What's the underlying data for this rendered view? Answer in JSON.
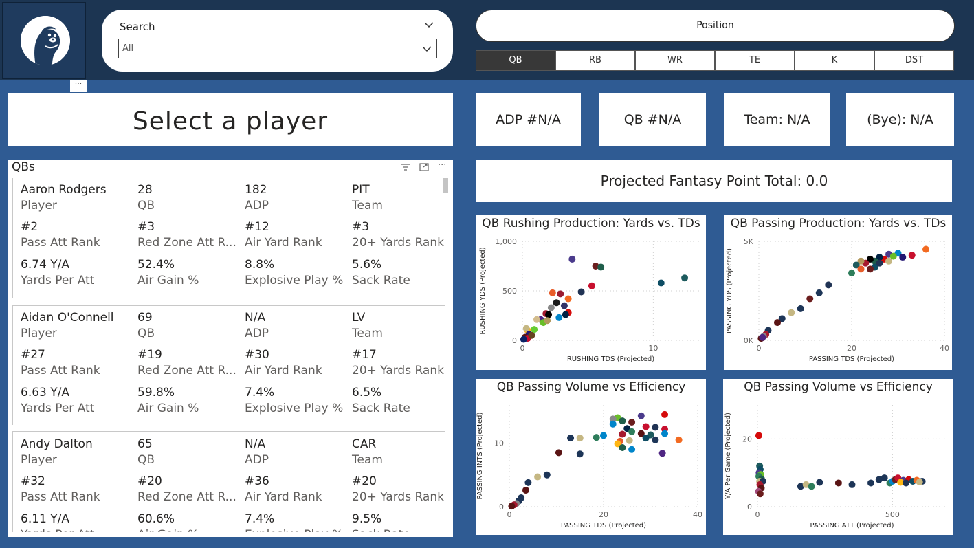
{
  "search": {
    "title": "Search",
    "value": "All"
  },
  "position": {
    "title": "Position",
    "options": [
      "QB",
      "RB",
      "WR",
      "TE",
      "K",
      "DST"
    ],
    "selected": "QB"
  },
  "more_label": "···",
  "header": {
    "player_title": "Select a player"
  },
  "stats": {
    "adp": "ADP #N/A",
    "pos_rank": "QB #N/A",
    "team": "Team: N/A",
    "bye": "(Bye): N/A"
  },
  "projected_total": "Projected Fantasy Point Total: 0.0",
  "qbs_panel": {
    "title": "QBs",
    "labels": {
      "player": "Player",
      "age": "QB",
      "adp": "ADP",
      "team": "Team",
      "pass_att_rank": "Pass Att Rank",
      "red_zone": "Red Zone Att R...",
      "air_yard_rank": "Air Yard Rank",
      "yards20": "20+ Yards Rank",
      "ypa": "Yards Per Att",
      "air_gain": "Air Gain %",
      "explosive": "Explosive Play %",
      "sack_rate": "Sack Rate"
    },
    "players": [
      {
        "name": "Aaron Rodgers",
        "age": "28",
        "adp": "182",
        "team": "PIT",
        "pass_att_rank": "#2",
        "red_zone": "#3",
        "air_yard_rank": "#12",
        "yards20": "#3",
        "ypa": "6.74 Y/A",
        "air_gain": "52.4%",
        "explosive": "8.8%",
        "sack_rate": "5.6%"
      },
      {
        "name": "Aidan O'Connell",
        "age": "69",
        "adp": "N/A",
        "team": "LV",
        "pass_att_rank": "#27",
        "red_zone": "#19",
        "air_yard_rank": "#30",
        "yards20": "#17",
        "ypa": "6.63 Y/A",
        "air_gain": "59.8%",
        "explosive": "7.4%",
        "sack_rate": "6.5%"
      },
      {
        "name": "Andy Dalton",
        "age": "65",
        "adp": "N/A",
        "team": "CAR",
        "pass_att_rank": "#32",
        "red_zone": "#20",
        "air_yard_rank": "#36",
        "yards20": "#20",
        "ypa": "6.11 Y/A",
        "air_gain": "60.6%",
        "explosive": "7.4%",
        "sack_rate": "9.5%"
      }
    ]
  },
  "chart_data": [
    {
      "type": "scatter",
      "title": "QB Rushing Production: Yards vs. TDs",
      "xlabel": "RUSHING TDS (Projected)",
      "ylabel": "RUSHING YDS (Projected)",
      "xlim": [
        0,
        13.5
      ],
      "ylim": [
        0,
        1000
      ],
      "xticks": [
        0,
        10
      ],
      "xtick_labels": [
        "0",
        "10"
      ],
      "yticks": [
        0,
        500,
        1000
      ],
      "ytick_labels": [
        "0",
        "500",
        "1,000"
      ],
      "points": [
        [
          3.8,
          820,
          "#4b3b8c"
        ],
        [
          5.6,
          750,
          "#6b1d1d"
        ],
        [
          6.0,
          740,
          "#1f5e4a"
        ],
        [
          12.4,
          630,
          "#1d5b5e"
        ],
        [
          10.6,
          580,
          "#0e4d64"
        ],
        [
          5.3,
          550,
          "#c8102e"
        ],
        [
          4.5,
          490,
          "#203354"
        ],
        [
          2.3,
          480,
          "#e85d2a"
        ],
        [
          2.9,
          470,
          "#9b1b30"
        ],
        [
          3.5,
          420,
          "#f26a21"
        ],
        [
          2.6,
          380,
          "#1a1a1a"
        ],
        [
          3.2,
          350,
          "#333366"
        ],
        [
          2.2,
          330,
          "#888888"
        ],
        [
          1.8,
          270,
          "#a6192e"
        ],
        [
          3.5,
          280,
          "#d50a0a"
        ],
        [
          2.0,
          260,
          "#000000"
        ],
        [
          3.3,
          260,
          "#002244"
        ],
        [
          1.4,
          210,
          "#4f2683"
        ],
        [
          1.6,
          180,
          "#69be28"
        ],
        [
          2.8,
          230,
          "#0085ca"
        ],
        [
          1.1,
          210,
          "#d3bc8d"
        ],
        [
          1.9,
          200,
          "#b3995d"
        ],
        [
          0.9,
          110,
          "#66cc33"
        ],
        [
          0.4,
          100,
          "#ffb612"
        ],
        [
          0.3,
          120,
          "#c5b783"
        ],
        [
          0.5,
          60,
          "#241773"
        ],
        [
          0.2,
          30,
          "#5a1414"
        ],
        [
          0.4,
          20,
          "#c60c30"
        ],
        [
          0.7,
          50,
          "#654321"
        ],
        [
          0.1,
          10,
          "#0b2265"
        ]
      ]
    },
    {
      "type": "scatter",
      "title": "QB Passing Production: Yards vs. TDs",
      "xlabel": "PASSING TDS (Projected)",
      "ylabel": "PASSING YDS (Projected)",
      "xlim": [
        0,
        40
      ],
      "ylim": [
        0,
        5000
      ],
      "xticks": [
        0,
        20,
        40
      ],
      "xtick_labels": [
        "0",
        "20",
        "40"
      ],
      "yticks": [
        0,
        5000
      ],
      "ytick_labels": [
        "0K",
        "5K"
      ],
      "points": [
        [
          36,
          4600,
          "#f26a21"
        ],
        [
          33,
          4300,
          "#c8102e"
        ],
        [
          30,
          4400,
          "#0085ca"
        ],
        [
          31,
          4200,
          "#241773"
        ],
        [
          28,
          4350,
          "#4b3b8c"
        ],
        [
          27,
          4100,
          "#d50a0a"
        ],
        [
          26,
          4200,
          "#002244"
        ],
        [
          29,
          4250,
          "#69be28"
        ],
        [
          25,
          4000,
          "#1f5e4a"
        ],
        [
          24,
          4100,
          "#000000"
        ],
        [
          23,
          3900,
          "#a6192e"
        ],
        [
          22,
          4000,
          "#b3995d"
        ],
        [
          21,
          3800,
          "#1d5b5e"
        ],
        [
          25,
          3700,
          "#0e4d64"
        ],
        [
          20,
          3400,
          "#2e7d5b"
        ],
        [
          24,
          3600,
          "#6b1d1d"
        ],
        [
          28,
          4000,
          "#c5b783"
        ],
        [
          26,
          3900,
          "#203354"
        ],
        [
          22,
          3600,
          "#e85d2a"
        ],
        [
          15,
          2800,
          "#203354"
        ],
        [
          13,
          2400,
          "#1d3557"
        ],
        [
          11,
          2100,
          "#6b1d1d"
        ],
        [
          9,
          1600,
          "#1d3557"
        ],
        [
          7,
          1400,
          "#c5b783"
        ],
        [
          5,
          1100,
          "#1d3557"
        ],
        [
          4,
          900,
          "#5a1414"
        ],
        [
          2,
          500,
          "#1d3557"
        ],
        [
          1.5,
          300,
          "#a6192e"
        ],
        [
          1,
          200,
          "#888888"
        ],
        [
          0.5,
          100,
          "#5a1414"
        ],
        [
          0.8,
          150,
          "#4f2683"
        ]
      ]
    },
    {
      "type": "scatter",
      "title": "QB Passing Volume vs Efficiency",
      "xlabel": "PASSING TDS (Projected)",
      "ylabel": "PASSING INTS (Projected)",
      "xlim": [
        0,
        40
      ],
      "ylim": [
        0,
        16
      ],
      "xticks": [
        0,
        20,
        40
      ],
      "xtick_labels": [
        "0",
        "20",
        "40"
      ],
      "yticks": [
        0,
        10
      ],
      "ytick_labels": [
        "0",
        "10"
      ],
      "points": [
        [
          33,
          14.5,
          "#d50a0a"
        ],
        [
          28,
          14.3,
          "#4b3b8c"
        ],
        [
          23,
          14,
          "#69be28"
        ],
        [
          22,
          13.8,
          "#888888"
        ],
        [
          24,
          13.5,
          "#1f5e4a"
        ],
        [
          26,
          13.3,
          "#6b1d1d"
        ],
        [
          22,
          13,
          "#0085ca"
        ],
        [
          29,
          12.6,
          "#c8102e"
        ],
        [
          25,
          12.3,
          "#002244"
        ],
        [
          33,
          12.2,
          "#c8102e"
        ],
        [
          31,
          12.5,
          "#203354"
        ],
        [
          20,
          11.2,
          "#0085ca"
        ],
        [
          26,
          11.8,
          "#2e7d5b"
        ],
        [
          24,
          11.4,
          "#a6192e"
        ],
        [
          28,
          11.5,
          "#5a1414"
        ],
        [
          30,
          11.3,
          "#1d5b5e"
        ],
        [
          18.5,
          10.9,
          "#2e7d5b"
        ],
        [
          23.5,
          10.3,
          "#e85d2a"
        ],
        [
          25.5,
          10.4,
          "#c5b783"
        ],
        [
          29,
          10.8,
          "#0e4d64"
        ],
        [
          31,
          10.5,
          "#1d3557"
        ],
        [
          36,
          10.5,
          "#f26a21"
        ],
        [
          33,
          11.5,
          "#0085ca"
        ],
        [
          23,
          9.9,
          "#ffb612"
        ],
        [
          24,
          9.3,
          "#1f5e4a"
        ],
        [
          26,
          9.0,
          "#0085ca"
        ],
        [
          32.5,
          8.4,
          "#4f2683"
        ],
        [
          15,
          10.8,
          "#c5b783"
        ],
        [
          13,
          10.8,
          "#1d3557"
        ],
        [
          15,
          8.3,
          "#1d3557"
        ],
        [
          10.5,
          8.5,
          "#5a1414"
        ],
        [
          8,
          5,
          "#1d3557"
        ],
        [
          6,
          4.7,
          "#c5b783"
        ],
        [
          4,
          3.8,
          "#1d3557"
        ],
        [
          3.5,
          2.6,
          "#5a1414"
        ],
        [
          2.5,
          1.4,
          "#1d3557"
        ],
        [
          2,
          0.9,
          "#1d3557"
        ],
        [
          1.5,
          0.5,
          "#888888"
        ],
        [
          1,
          0.3,
          "#a6192e"
        ],
        [
          0.5,
          0.1,
          "#5a1414"
        ]
      ]
    },
    {
      "type": "scatter",
      "title": "QB Passing Volume vs Efficiency",
      "xlabel": "PASSING ATT (Projected)",
      "ylabel": "Y/A Per Game (Projected)",
      "xlim": [
        0,
        700
      ],
      "ylim": [
        0,
        30
      ],
      "xticks": [
        0,
        500
      ],
      "xtick_labels": [
        "0",
        "500"
      ],
      "yticks": [
        0,
        20
      ],
      "ytick_labels": [
        "0",
        "20"
      ],
      "points": [
        [
          5,
          21,
          "#d50a0a"
        ],
        [
          8,
          12,
          "#1d5b5e"
        ],
        [
          10,
          11,
          "#0e4d64"
        ],
        [
          6,
          10,
          "#4b3b8c"
        ],
        [
          12,
          9.5,
          "#69be28"
        ],
        [
          5,
          9,
          "#2e7d5b"
        ],
        [
          15,
          8.2,
          "#1f5e4a"
        ],
        [
          8,
          7.5,
          "#c5b783"
        ],
        [
          20,
          7.5,
          "#1d3557"
        ],
        [
          9,
          6.5,
          "#a6192e"
        ],
        [
          14,
          5.5,
          "#5a1414"
        ],
        [
          4,
          4.5,
          "#a34d7d"
        ],
        [
          10,
          3.8,
          "#6b1d1d"
        ],
        [
          160,
          6,
          "#1d3557"
        ],
        [
          180,
          6.5,
          "#c5b783"
        ],
        [
          200,
          6,
          "#2e7d5b"
        ],
        [
          230,
          7.2,
          "#1d3557"
        ],
        [
          300,
          7,
          "#5a1414"
        ],
        [
          350,
          6.5,
          "#1d3557"
        ],
        [
          420,
          7,
          "#1d3557"
        ],
        [
          450,
          8,
          "#1d3557"
        ],
        [
          470,
          8.5,
          "#1d3557"
        ],
        [
          490,
          7,
          "#2e7d5b"
        ],
        [
          500,
          7.5,
          "#0085ca"
        ],
        [
          510,
          8,
          "#6b1d1d"
        ],
        [
          520,
          8.5,
          "#c8102e"
        ],
        [
          540,
          7.8,
          "#4b3b8c"
        ],
        [
          560,
          8,
          "#d50a0a"
        ],
        [
          575,
          7.5,
          "#0e4d64"
        ],
        [
          590,
          7.8,
          "#f26a21"
        ],
        [
          610,
          7.5,
          "#1d3557"
        ],
        [
          530,
          7.2,
          "#ffb612"
        ],
        [
          550,
          7,
          "#203354"
        ],
        [
          600,
          7.3,
          "#c5b783"
        ]
      ]
    }
  ]
}
